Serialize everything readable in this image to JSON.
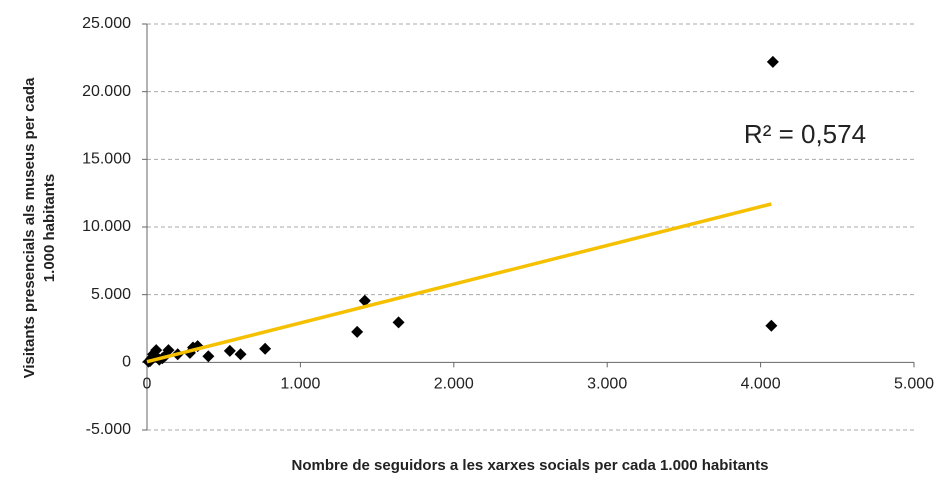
{
  "chart_data": {
    "type": "scatter",
    "xlabel": "Nombre de seguidors a les xarxes socials per cada 1.000 habitants",
    "ylabel": [
      "Visitants presencials als museus per cada",
      "1.000 habitants"
    ],
    "annotation": "R² = 0,574",
    "x": [
      4080,
      4070,
      1640,
      1420,
      1370,
      770,
      610,
      540,
      400,
      330,
      300,
      280,
      200,
      140,
      120,
      100,
      80,
      60,
      50,
      40,
      30,
      20,
      10
    ],
    "values": [
      22200,
      2700,
      2950,
      4550,
      2250,
      1000,
      600,
      850,
      450,
      1200,
      1100,
      700,
      600,
      900,
      500,
      300,
      200,
      900,
      400,
      600,
      300,
      100,
      50
    ],
    "color": "#000000",
    "trendline": {
      "color": "#f5c000",
      "x": [
        0,
        4070
      ],
      "y": [
        50,
        11700
      ]
    },
    "xlim": [
      0,
      5000
    ],
    "xticks": [
      0,
      {
        "value": 1000,
        "label": "1.000"
      },
      {
        "value": 2000,
        "label": "2.000"
      },
      {
        "value": 3000,
        "label": "3.000"
      },
      {
        "value": 4000,
        "label": "4.000"
      },
      {
        "value": 5000,
        "label": "5.000"
      }
    ],
    "ylim": [
      -5000,
      25000
    ],
    "yticks": [
      {
        "value": -5000,
        "label": "-5.000"
      },
      0,
      {
        "value": 5000,
        "label": "5.000"
      },
      {
        "value": 10000,
        "label": "10.000"
      },
      {
        "value": 15000,
        "label": "15.000"
      },
      {
        "value": 20000,
        "label": "20.000"
      },
      {
        "value": 25000,
        "label": "25.000"
      }
    ],
    "grid": true
  }
}
